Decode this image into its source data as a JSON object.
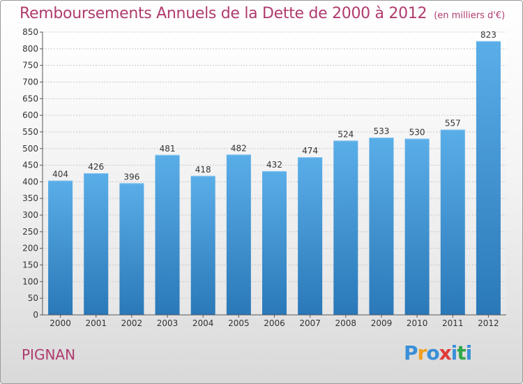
{
  "chart_data": {
    "type": "bar",
    "title": "Remboursements Annuels de la Dette de 2000 à 2012",
    "subtitle": "(en milliers d'€)",
    "categories": [
      "2000",
      "2001",
      "2002",
      "2003",
      "2004",
      "2005",
      "2006",
      "2007",
      "2008",
      "2009",
      "2010",
      "2011",
      "2012"
    ],
    "values": [
      404,
      426,
      396,
      481,
      418,
      482,
      432,
      474,
      524,
      533,
      530,
      557,
      823
    ],
    "ylim": [
      0,
      850
    ],
    "yticks": [
      0,
      50,
      100,
      150,
      200,
      250,
      300,
      350,
      400,
      450,
      500,
      550,
      600,
      650,
      700,
      750,
      800,
      850
    ],
    "grid": true,
    "bar_color_top": "#5aaee8",
    "bar_color_bottom": "#2a78b8"
  },
  "footer": {
    "commune": "PIGNAN",
    "brand_letters": [
      "P",
      "r",
      "o",
      "x",
      "i",
      "t",
      "i"
    ],
    "brand_colors": [
      "#3a8fd8",
      "#f0a020",
      "#3a8fd8",
      "#e03a3a",
      "#3a8fd8",
      "#2fa84a",
      "#3a8fd8"
    ]
  }
}
